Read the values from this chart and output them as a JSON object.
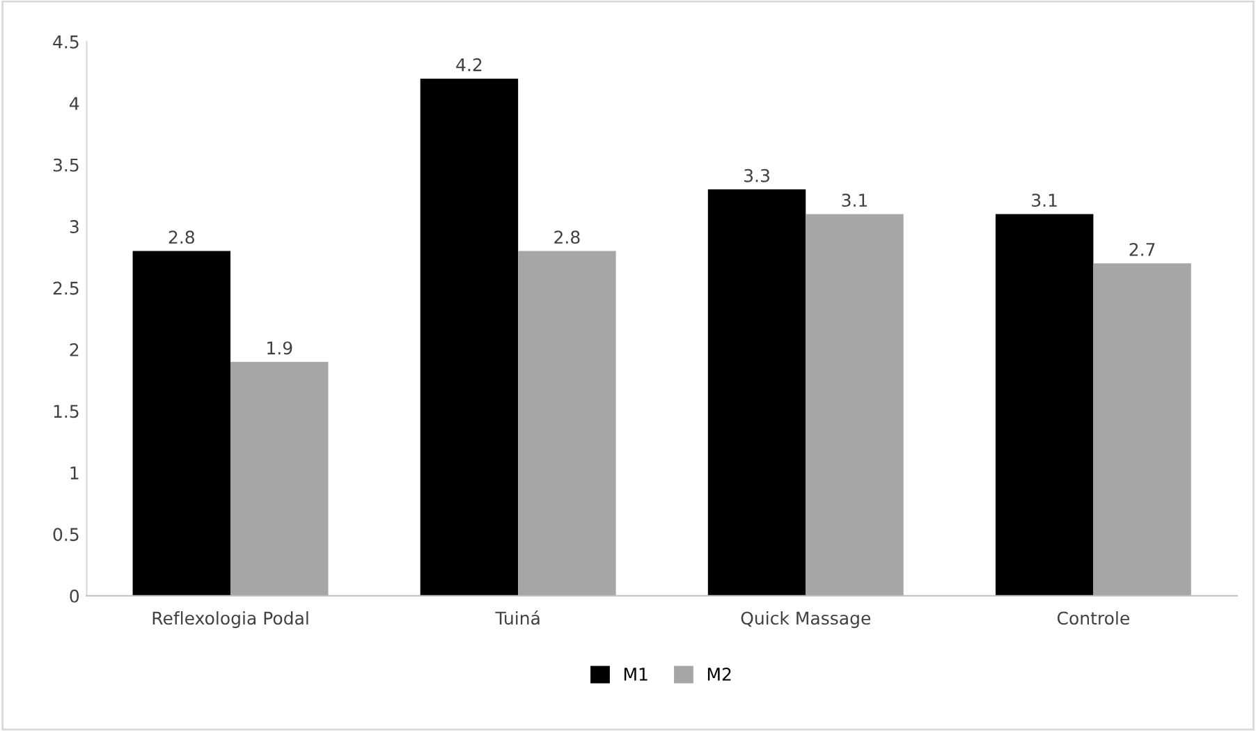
{
  "chart_data": {
    "type": "bar",
    "categories": [
      "Reflexologia Podal",
      "Tuiná",
      "Quick Massage",
      "Controle"
    ],
    "series": [
      {
        "name": "M1",
        "color": "#000000",
        "values": [
          2.8,
          4.2,
          3.3,
          3.1
        ]
      },
      {
        "name": "M2",
        "color": "#a6a6a6",
        "values": [
          1.9,
          2.8,
          3.1,
          2.7
        ]
      }
    ],
    "ylim": [
      0,
      4.5
    ],
    "yticks": [
      0,
      0.5,
      1,
      1.5,
      2,
      2.5,
      3,
      3.5,
      4,
      4.5
    ],
    "grid": false,
    "legend": "bottom",
    "data_labels": true
  }
}
